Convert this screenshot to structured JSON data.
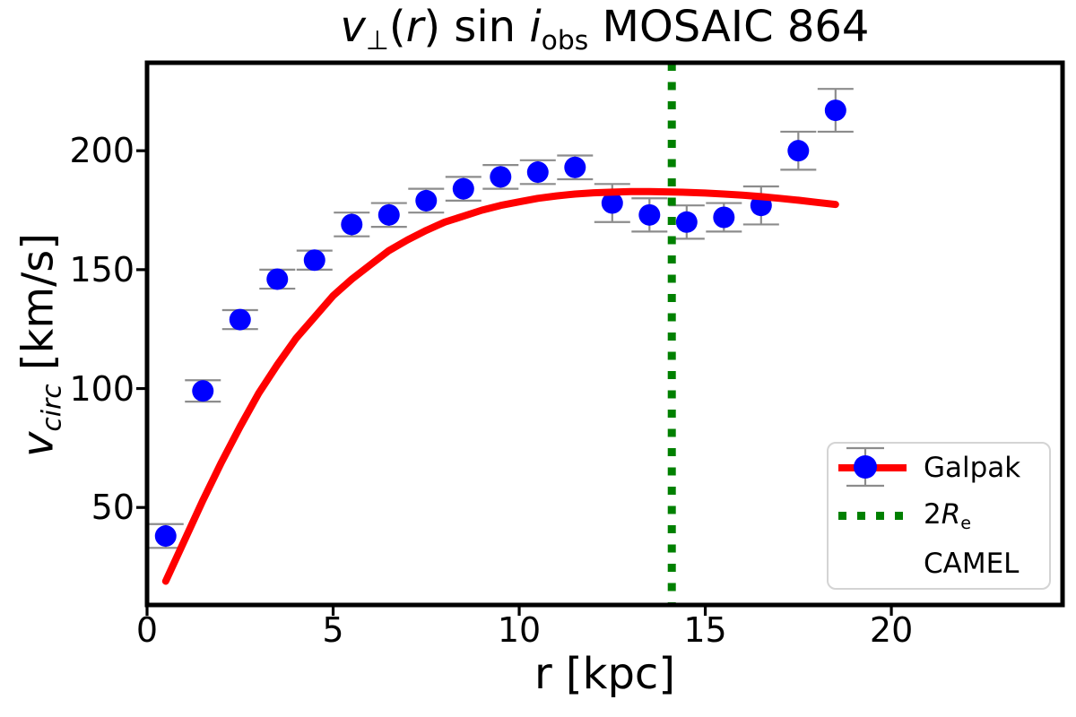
{
  "text": {
    "xlabel": "r [kpc]",
    "title_parts": [
      {
        "t": "v",
        "s": "i"
      },
      {
        "t": "⊥",
        "s": "sub"
      },
      {
        "t": "(",
        "s": ""
      },
      {
        "t": "r",
        "s": "i"
      },
      {
        "t": ")",
        "s": ""
      },
      {
        "t": " sin ",
        "s": ""
      },
      {
        "t": "i",
        "s": "i"
      },
      {
        "t": "obs",
        "s": "sub"
      },
      {
        "t": " MOSAIC 864",
        "s": ""
      }
    ],
    "ylabel_parts": [
      {
        "t": "v",
        "s": "i"
      },
      {
        "t": "circ",
        "s": "sub-i"
      },
      {
        "t": " [km/s]",
        "s": ""
      }
    ],
    "legend": {
      "galpak": "Galpak",
      "re_parts": [
        {
          "t": "2",
          "s": ""
        },
        {
          "t": "R",
          "s": "i"
        },
        {
          "t": "e",
          "s": "sub"
        }
      ],
      "camel": "CAMEL"
    }
  },
  "colors": {
    "galpak": "#ff0000",
    "re_line": "#008000",
    "camel": "#0000ff",
    "errorbar": "#8c8c8c",
    "axis": "#000000"
  },
  "chart_data": {
    "type": "line+scatter",
    "title": "v_perp(r) sin i_obs MOSAIC 864",
    "xlabel": "r [kpc]",
    "ylabel": "v_circ [km/s]",
    "xlim": [
      0,
      24.6
    ],
    "ylim": [
      9,
      237
    ],
    "x_ticks": [
      0,
      5,
      10,
      15,
      20
    ],
    "y_ticks": [
      50,
      100,
      150,
      200
    ],
    "grid": false,
    "legend_position": "lower right",
    "series": [
      {
        "name": "Galpak",
        "type": "line",
        "color": "#ff0000",
        "x": [
          0.5,
          1,
          1.5,
          2,
          2.5,
          3,
          3.5,
          4,
          4.5,
          5,
          5.5,
          6,
          6.5,
          7,
          7.5,
          8,
          8.5,
          9,
          9.5,
          10,
          10.5,
          11,
          11.5,
          12,
          12.5,
          13,
          13.5,
          14,
          14.5,
          15,
          15.5,
          16,
          16.5,
          17,
          17.5,
          18,
          18.5
        ],
        "y": [
          19,
          36,
          53,
          69,
          84,
          98,
          110,
          121,
          130,
          139,
          146,
          152,
          158,
          162.5,
          166.5,
          170,
          172.5,
          175,
          177,
          178.5,
          180,
          181,
          181.8,
          182.3,
          182.6,
          182.8,
          182.8,
          182.7,
          182.5,
          182.2,
          181.8,
          181.3,
          180.7,
          180,
          179.2,
          178.3,
          177.4
        ]
      },
      {
        "name": "2Re",
        "type": "vline",
        "color": "#008000",
        "linestyle": "dotted",
        "x": 14.1
      },
      {
        "name": "CAMEL",
        "type": "scatter",
        "color": "#0000ff",
        "error_color": "#8c8c8c",
        "x": [
          0.5,
          1.5,
          2.5,
          3.5,
          4.5,
          5.5,
          6.5,
          7.5,
          8.5,
          9.5,
          10.5,
          11.5,
          12.5,
          13.5,
          14.5,
          15.5,
          16.5,
          17.5,
          18.5
        ],
        "y": [
          38,
          99,
          129,
          146,
          154,
          169,
          173,
          179,
          184,
          189,
          191,
          193,
          178,
          173,
          170,
          172,
          177,
          200,
          217
        ],
        "yerr": [
          5,
          4.5,
          4,
          4,
          4,
          5,
          5,
          5,
          5,
          5,
          5,
          5,
          8,
          7,
          7,
          6,
          8,
          8,
          9
        ]
      }
    ]
  }
}
